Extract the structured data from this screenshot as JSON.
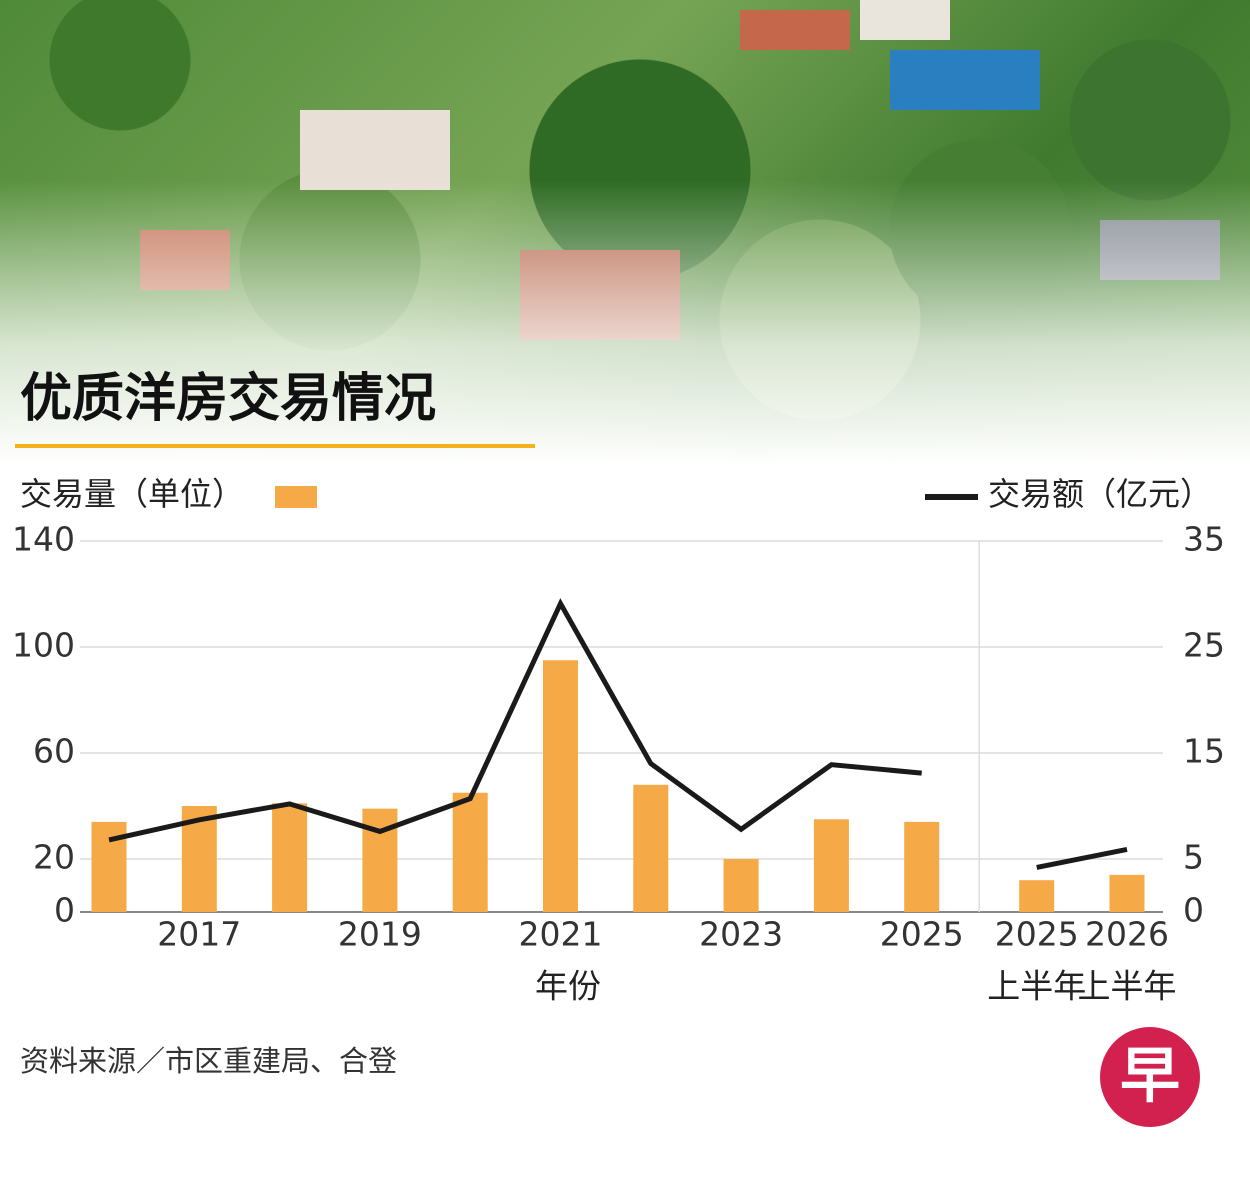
{
  "chart_data": {
    "type": "bar",
    "title": "优质洋房交易情况",
    "x_label": "年份",
    "categories": [
      null,
      "2017",
      null,
      "2019",
      null,
      "2021",
      null,
      "2023",
      null,
      "2025",
      null,
      "2025",
      "2026"
    ],
    "category_notes": [
      null,
      null,
      null,
      null,
      null,
      null,
      null,
      null,
      null,
      null,
      null,
      "上半年",
      "上半年"
    ],
    "series": [
      {
        "name": "交易量（单位）",
        "type": "bar",
        "color": "#f5a947",
        "values": [
          34,
          40,
          41,
          39,
          45,
          95,
          48,
          20,
          35,
          34,
          null,
          12,
          14
        ]
      },
      {
        "name": "交易额（亿元）",
        "type": "line",
        "axis": "y2",
        "color": "#1a1a1a",
        "values": [
          6.8,
          8.7,
          10.2,
          7.6,
          10.7,
          29.1,
          14.0,
          7.8,
          13.9,
          13.1,
          null,
          4.2,
          5.9
        ]
      }
    ],
    "ylim": [
      0,
      140
    ],
    "yticks": [
      0,
      20,
      60,
      100,
      140
    ],
    "y2lim": [
      0,
      35
    ],
    "y2ticks": [
      0,
      5,
      15,
      25,
      35
    ],
    "grid": true
  },
  "source": "资料来源／市区重建局、合登",
  "logo": "早"
}
